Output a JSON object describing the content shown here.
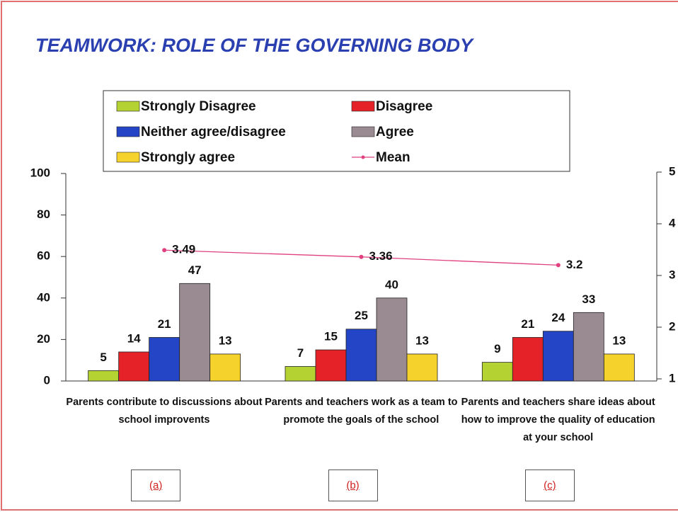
{
  "chart_data": {
    "type": "bar",
    "title": "TEAMWORK: ROLE OF THE GOVERNING BODY",
    "categories": [
      "Parents contribute to discussions about school improvents",
      "Parents and teachers work as a team to promote the goals of the school",
      "Parents and teachers share ideas about how to improve the quality of education at your school"
    ],
    "series": [
      {
        "name": "Strongly Disagree",
        "color": "#b4d232",
        "values": [
          5,
          7,
          9
        ]
      },
      {
        "name": "Disagree",
        "color": "#e52227",
        "values": [
          14,
          15,
          21
        ]
      },
      {
        "name": "Neither agree/disagree",
        "color": "#2345c6",
        "values": [
          21,
          25,
          24
        ]
      },
      {
        "name": "Agree",
        "color": "#9a8a91",
        "values": [
          47,
          40,
          33
        ]
      },
      {
        "name": "Strongly agree",
        "color": "#f6d22c",
        "values": [
          13,
          13,
          13
        ]
      },
      {
        "name": "Mean",
        "color": "#e0407f",
        "type": "line",
        "axis": "y2",
        "values": [
          3.49,
          3.36,
          3.2
        ]
      }
    ],
    "ylim": [
      0,
      100
    ],
    "yticks": [
      0,
      20,
      40,
      60,
      80,
      100
    ],
    "y2lim": [
      1,
      5
    ],
    "y2ticks": [
      1,
      2,
      3,
      4,
      5
    ],
    "legend": "top",
    "annotations": [
      "(a)",
      "(b)",
      "(c)"
    ]
  }
}
